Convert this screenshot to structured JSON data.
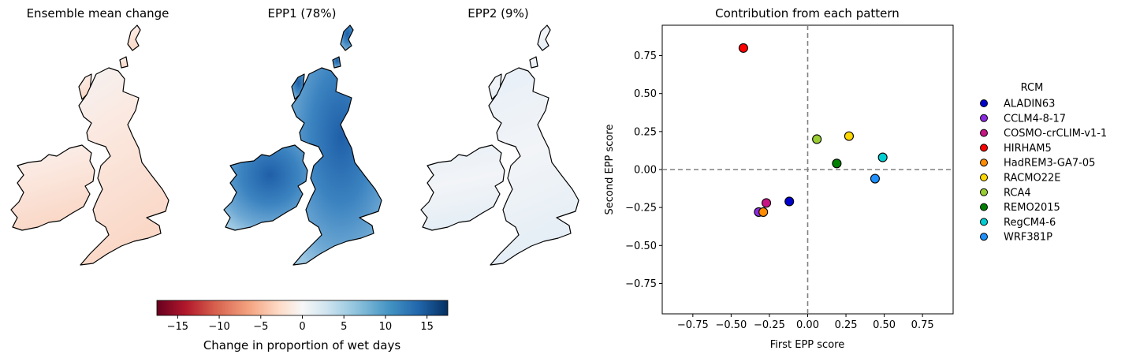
{
  "maps": {
    "panels": [
      {
        "title": "Ensemble mean change"
      },
      {
        "title": "EPP1 (78%)"
      },
      {
        "title": "EPP2 (9%)"
      }
    ],
    "colorbar": {
      "label": "Change in proportion of wet days",
      "colormap": "RdBu",
      "range": [
        -17.5,
        17.5
      ],
      "ticks": [
        "−15",
        "−10",
        "−5",
        "0",
        "5",
        "10",
        "15"
      ]
    }
  },
  "chart_data": {
    "type": "scatter",
    "title": "Contribution from each pattern",
    "xlabel": "First EPP score",
    "ylabel": "Second EPP score",
    "xlim": [
      -0.95,
      0.95
    ],
    "ylim": [
      -0.95,
      0.95
    ],
    "xticks": [
      "−0.75",
      "−0.50",
      "−0.25",
      "0.00",
      "0.25",
      "0.50",
      "0.75"
    ],
    "yticks": [
      "0.75",
      "0.50",
      "0.25",
      "0.00",
      "−0.25",
      "−0.50",
      "−0.75"
    ],
    "reference_lines": {
      "x": 0,
      "y": 0,
      "style": "dashed",
      "color": "#808080"
    },
    "legend": {
      "title": "RCM",
      "placement": "outside-right"
    },
    "series": [
      {
        "name": "ALADIN63",
        "color": "#0000cd",
        "x": -0.12,
        "y": -0.21
      },
      {
        "name": "CCLM4-8-17",
        "color": "#8a2be2",
        "x": -0.32,
        "y": -0.28
      },
      {
        "name": "COSMO-crCLIM-v1-1",
        "color": "#c71585",
        "x": -0.27,
        "y": -0.22
      },
      {
        "name": "HIRHAM5",
        "color": "#ff0000",
        "x": -0.42,
        "y": 0.8
      },
      {
        "name": "HadREM3-GA7-05",
        "color": "#ff8c00",
        "x": -0.29,
        "y": -0.28
      },
      {
        "name": "RACMO22E",
        "color": "#ffd700",
        "x": 0.27,
        "y": 0.22
      },
      {
        "name": "RCA4",
        "color": "#9acd32",
        "x": 0.06,
        "y": 0.2
      },
      {
        "name": "REMO2015",
        "color": "#008000",
        "x": 0.19,
        "y": 0.04
      },
      {
        "name": "RegCM4-6",
        "color": "#00ced1",
        "x": 0.49,
        "y": 0.08
      },
      {
        "name": "WRF381P",
        "color": "#1e90ff",
        "x": 0.44,
        "y": -0.06
      }
    ]
  }
}
